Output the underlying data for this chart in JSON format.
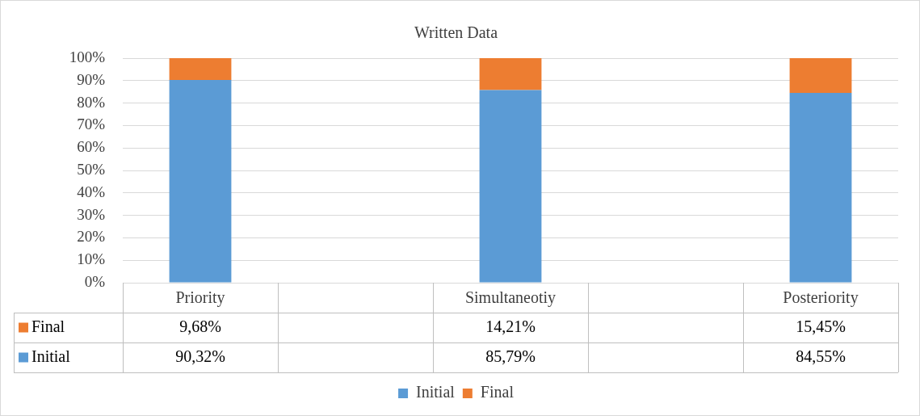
{
  "chart_data": {
    "type": "bar",
    "title": "Written Data",
    "stacked": true,
    "categories": [
      "Priority",
      null,
      "Simultaneotiy",
      null,
      "Posteriority"
    ],
    "series": [
      {
        "name": "Initial",
        "color": "#5b9bd5",
        "values": [
          90.32,
          null,
          85.79,
          null,
          84.55
        ],
        "value_labels": [
          "90,32%",
          null,
          "85,79%",
          null,
          "84,55%"
        ]
      },
      {
        "name": "Final",
        "color": "#ed7d31",
        "values": [
          9.68,
          null,
          14.21,
          null,
          15.45
        ],
        "value_labels": [
          "9,68%",
          null,
          "14,21%",
          null,
          "15,45%"
        ]
      }
    ],
    "ylim": [
      0,
      100
    ],
    "yticks": [
      {
        "value": 0,
        "label": "0%"
      },
      {
        "value": 10,
        "label": "10%"
      },
      {
        "value": 20,
        "label": "20%"
      },
      {
        "value": 30,
        "label": "30%"
      },
      {
        "value": 40,
        "label": "40%"
      },
      {
        "value": 50,
        "label": "50%"
      },
      {
        "value": 60,
        "label": "60%"
      },
      {
        "value": 70,
        "label": "70%"
      },
      {
        "value": 80,
        "label": "80%"
      },
      {
        "value": 90,
        "label": "90%"
      },
      {
        "value": 100,
        "label": "100%"
      }
    ],
    "grid": "y",
    "legend": "bottom"
  }
}
